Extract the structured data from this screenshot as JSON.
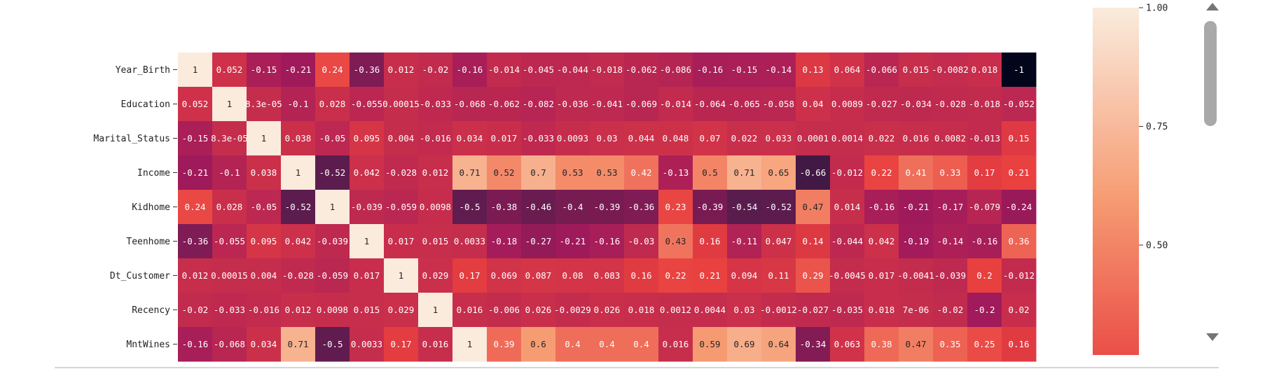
{
  "chart_data": {
    "type": "heatmap",
    "row_labels": [
      "Year_Birth",
      "Education",
      "Marital_Status",
      "Income",
      "Kidhome",
      "Teenhome",
      "Dt_Customer",
      "Recency",
      "MntWines"
    ],
    "values": [
      [
        "1",
        "0.052",
        "-0.15",
        "-0.21",
        "0.24",
        "-0.36",
        "0.012",
        "-0.02",
        "-0.16",
        "-0.014",
        "-0.045",
        "-0.044",
        "-0.018",
        "-0.062",
        "-0.086",
        "-0.16",
        "-0.15",
        "-0.14",
        "0.13",
        "0.064",
        "-0.066",
        "0.015",
        "-0.0082",
        "0.018",
        "-1"
      ],
      [
        "0.052",
        "1",
        "8.3e-05",
        "-0.1",
        "0.028",
        "-0.055",
        "0.00015",
        "-0.033",
        "-0.068",
        "-0.062",
        "-0.082",
        "-0.036",
        "-0.041",
        "-0.069",
        "-0.014",
        "-0.064",
        "-0.065",
        "-0.058",
        "0.04",
        "0.0089",
        "-0.027",
        "-0.034",
        "-0.028",
        "-0.018",
        "-0.052"
      ],
      [
        "-0.15",
        "8.3e-05",
        "1",
        "0.038",
        "-0.05",
        "0.095",
        "0.004",
        "-0.016",
        "0.034",
        "0.017",
        "-0.033",
        "0.0093",
        "0.03",
        "0.044",
        "0.048",
        "0.07",
        "0.022",
        "0.033",
        "0.0001",
        "0.0014",
        "0.022",
        "0.016",
        "0.0082",
        "-0.013",
        "0.15"
      ],
      [
        "-0.21",
        "-0.1",
        "0.038",
        "1",
        "-0.52",
        "0.042",
        "-0.028",
        "0.012",
        "0.71",
        "0.52",
        "0.7",
        "0.53",
        "0.53",
        "0.42",
        "-0.13",
        "0.5",
        "0.71",
        "0.65",
        "-0.66",
        "-0.012",
        "0.22",
        "0.41",
        "0.33",
        "0.17",
        "0.21"
      ],
      [
        "0.24",
        "0.028",
        "-0.05",
        "-0.52",
        "1",
        "-0.039",
        "-0.059",
        "0.0098",
        "-0.5",
        "-0.38",
        "-0.46",
        "-0.4",
        "-0.39",
        "-0.36",
        "0.23",
        "-0.39",
        "-0.54",
        "-0.52",
        "0.47",
        "0.014",
        "-0.16",
        "-0.21",
        "-0.17",
        "-0.079",
        "-0.24"
      ],
      [
        "-0.36",
        "-0.055",
        "0.095",
        "0.042",
        "-0.039",
        "1",
        "0.017",
        "0.015",
        "0.0033",
        "-0.18",
        "-0.27",
        "-0.21",
        "-0.16",
        "-0.03",
        "0.43",
        "0.16",
        "-0.11",
        "0.047",
        "0.14",
        "-0.044",
        "0.042",
        "-0.19",
        "-0.14",
        "-0.16",
        "0.36"
      ],
      [
        "0.012",
        "0.00015",
        "0.004",
        "-0.028",
        "-0.059",
        "0.017",
        "1",
        "0.029",
        "0.17",
        "0.069",
        "0.087",
        "0.08",
        "0.083",
        "0.16",
        "0.22",
        "0.21",
        "0.094",
        "0.11",
        "0.29",
        "-0.0045",
        "0.017",
        "-0.0041",
        "-0.039",
        "0.2",
        "-0.012"
      ],
      [
        "-0.02",
        "-0.033",
        "-0.016",
        "0.012",
        "0.0098",
        "0.015",
        "0.029",
        "1",
        "0.016",
        "-0.006",
        "0.026",
        "-0.0029",
        "0.026",
        "0.018",
        "0.0012",
        "0.0044",
        "0.03",
        "-0.0012",
        "-0.027",
        "-0.035",
        "0.018",
        "7e-06",
        "-0.02",
        "-0.2",
        "0.02"
      ],
      [
        "-0.16",
        "-0.068",
        "0.034",
        "0.71",
        "-0.5",
        "0.0033",
        "0.17",
        "0.016",
        "1",
        "0.39",
        "0.6",
        "0.4",
        "0.4",
        "0.4",
        "0.016",
        "0.59",
        "0.69",
        "0.64",
        "-0.34",
        "0.063",
        "0.38",
        "0.47",
        "0.35",
        "0.25",
        "0.16"
      ]
    ],
    "colorbar": {
      "tick_labels": [
        "1.00",
        "0.75",
        "0.50"
      ],
      "tick_values": [
        1.0,
        0.75,
        0.5
      ],
      "range": [
        -1,
        1
      ],
      "colormap": "rocket",
      "colors": [
        "#03051a",
        "#4c1d4b",
        "#a11a5b",
        "#e83f3f",
        "#f69c73",
        "#faebdd"
      ]
    }
  },
  "colors": {
    "scrollbar_thumb": "#a9a9a9",
    "scrollbar_arrow": "#757575",
    "divider": "#d6d6d6"
  },
  "scrollbar": {
    "up_icon": "triangle-up",
    "down_icon": "triangle-down"
  }
}
